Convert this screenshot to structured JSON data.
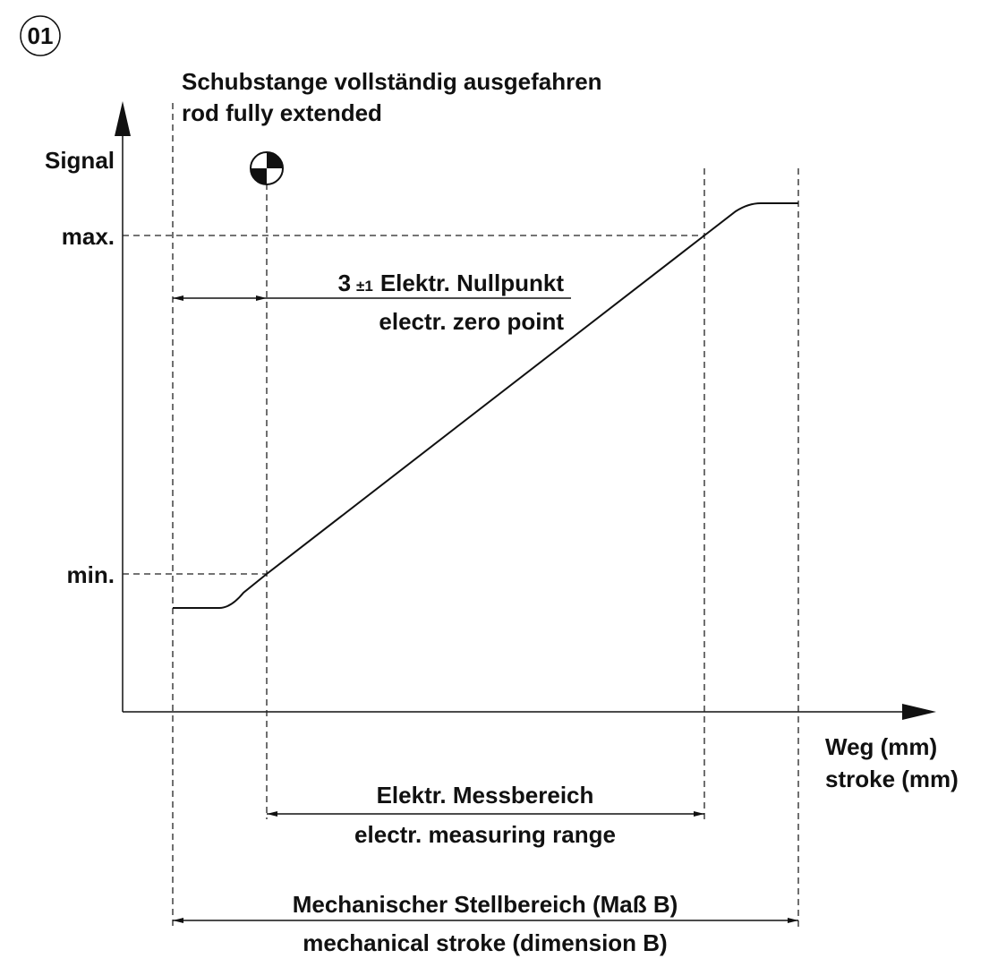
{
  "badge": "01",
  "header": {
    "de": "Schubstange vollständig ausgefahren",
    "en": "rod fully extended"
  },
  "y_axis": {
    "label": "Signal",
    "max": "max.",
    "min": "min."
  },
  "x_axis": {
    "de": "Weg (mm)",
    "en": "stroke (mm)"
  },
  "zero_point": {
    "value": "3",
    "tolerance": "±1",
    "de": "Elektr. Nullpunkt",
    "en": "electr. zero point"
  },
  "measuring_range": {
    "de": "Elektr. Messbereich",
    "en": "electr. measuring range"
  },
  "mechanical_stroke": {
    "de": "Mechanischer Stellbereich (Maß B)",
    "en": "mechanical stroke (dimension B)"
  }
}
